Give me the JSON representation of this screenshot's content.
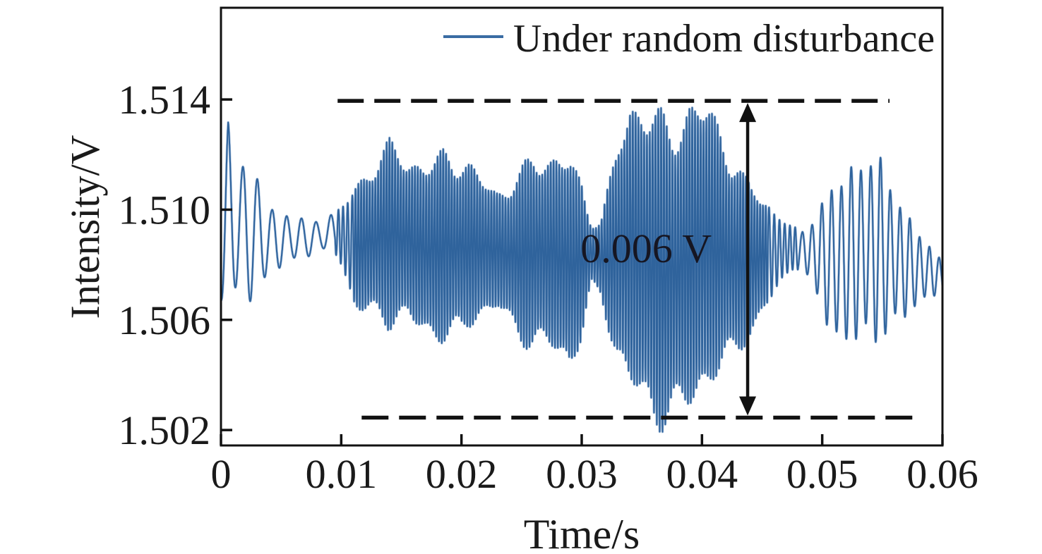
{
  "figure": {
    "background": "#ffffff",
    "text_color": "#1a1a1a",
    "axis_color": "#111111",
    "annotation_color": "#111111"
  },
  "chart_data": {
    "type": "line",
    "title": "",
    "xlabel": "Time/s",
    "ylabel": "Intensity/V",
    "xlim": [
      0,
      0.06
    ],
    "ylim": [
      1.50144,
      1.51733
    ],
    "grid": false,
    "x_axis": {
      "ticks": [
        {
          "value": 0,
          "label": "0"
        },
        {
          "value": 0.01,
          "label": "0.01"
        },
        {
          "value": 0.02,
          "label": "0.02"
        },
        {
          "value": 0.03,
          "label": "0.03"
        },
        {
          "value": 0.04,
          "label": "0.04"
        },
        {
          "value": 0.05,
          "label": "0.05"
        },
        {
          "value": 0.06,
          "label": "0.06"
        }
      ]
    },
    "y_axis": {
      "ticks": [
        {
          "value": 1.502,
          "label": "1.502"
        },
        {
          "value": 1.506,
          "label": "1.506"
        },
        {
          "value": 1.51,
          "label": "1.510"
        },
        {
          "value": 1.514,
          "label": "1.514"
        }
      ]
    },
    "legend": {
      "position": "upper-right-inside",
      "entries": [
        {
          "label": "Under random disturbance",
          "color": "#3a6ca3",
          "marker": "line"
        }
      ]
    },
    "series": [
      {
        "name": "Under random disturbance",
        "color": "#2f639c",
        "halo_color": "#a9c1dd",
        "envelope": {
          "t_ms": [
            0,
            0.6,
            1.2,
            2.0,
            3.0,
            4.2,
            5.5,
            7.0,
            8.5,
            9.7,
            11,
            12.5,
            14,
            15.5,
            17,
            18.5,
            20,
            21.5,
            23,
            24.5,
            26,
            27.5,
            29,
            30,
            30.8,
            31.6,
            33,
            34,
            35,
            36,
            37.5,
            39,
            40.5,
            41.5,
            42.5,
            43.5,
            44.5,
            46,
            47.5,
            48.3,
            50,
            51.5,
            53,
            54.5,
            56,
            57.5,
            58.8,
            60
          ],
          "upper_v": [
            1.509,
            1.5133,
            1.5124,
            1.5121,
            1.5114,
            1.5103,
            1.51,
            1.5096,
            1.5097,
            1.5101,
            1.511,
            1.5118,
            1.5124,
            1.512,
            1.5122,
            1.5124,
            1.5119,
            1.5113,
            1.5109,
            1.5116,
            1.5121,
            1.5119,
            1.5122,
            1.5113,
            1.5098,
            1.5098,
            1.5125,
            1.5138,
            1.514,
            1.5141,
            1.514,
            1.5141,
            1.5138,
            1.5132,
            1.5122,
            1.5115,
            1.5112,
            1.51,
            1.5094,
            1.5092,
            1.5106,
            1.5116,
            1.5121,
            1.5119,
            1.5112,
            1.5098,
            1.5088,
            1.5082
          ],
          "lower_v": [
            1.5066,
            1.5057,
            1.5061,
            1.5063,
            1.5069,
            1.5077,
            1.5079,
            1.5082,
            1.5084,
            1.5083,
            1.5066,
            1.5058,
            1.5053,
            1.5058,
            1.5054,
            1.5052,
            1.5049,
            1.5058,
            1.5064,
            1.5055,
            1.5046,
            1.5044,
            1.504,
            1.5053,
            1.5072,
            1.5068,
            1.504,
            1.5028,
            1.5023,
            1.5021,
            1.5023,
            1.5025,
            1.5028,
            1.5034,
            1.5044,
            1.5052,
            1.5056,
            1.5068,
            1.5077,
            1.5078,
            1.5062,
            1.505,
            1.5046,
            1.5048,
            1.5055,
            1.5063,
            1.5068,
            1.5068
          ]
        },
        "carrier_segments": [
          {
            "t_end_ms": 9.5,
            "freq_hz": 820
          },
          {
            "t_end_ms": 11,
            "freq_hz": 2600
          },
          {
            "t_end_ms": 45.5,
            "freq_hz": 4250
          },
          {
            "t_end_ms": 48,
            "freq_hz": 2300
          },
          {
            "t_end_ms": 60,
            "freq_hz": 1230
          }
        ],
        "modulation": {
          "peak_base": 0.85,
          "peak_var": 0.15,
          "center_wobble": 0.07
        }
      }
    ],
    "annotations": {
      "dashed_lines": [
        {
          "name": "upper-bound",
          "y_v": 1.51395,
          "x_start_s": 0.0097,
          "x_end_s": 0.0556
        },
        {
          "name": "lower-bound",
          "y_v": 1.50245,
          "x_start_s": 0.0117,
          "x_end_s": 0.0576
        }
      ],
      "arrow": {
        "x_s": 0.0438,
        "from_v": 1.51395,
        "to_v": 1.50245,
        "double_headed": true
      },
      "label": {
        "text": "0.006 V",
        "x_s": 0.0299,
        "y_v": 1.5086
      }
    }
  }
}
